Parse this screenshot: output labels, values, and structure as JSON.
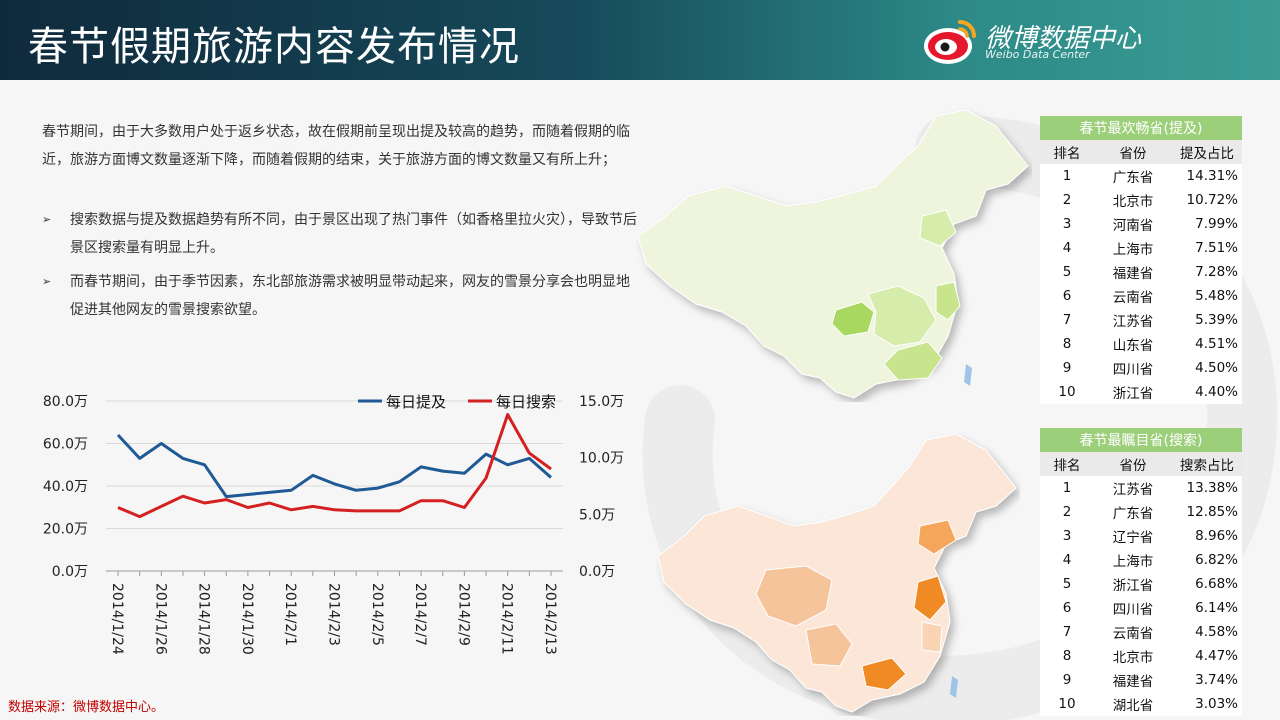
{
  "header": {
    "title": "春节假期旅游内容发布情况",
    "brand_cn": "微博数据中心",
    "brand_en": "Weibo Data Center",
    "gradient_start": "#0f2a3c",
    "gradient_end": "#3a9c95"
  },
  "intro": "春节期间，由于大多数用户处于返乡状态，故在假期前呈现出提及较高的趋势，而随着假期的临近，旅游方面博文数量逐渐下降，而随着假期的结束，关于旅游方面的博文数量又有所上升；",
  "bullets": [
    {
      "mark": "➢",
      "text": "搜索数据与提及数据趋势有所不同，由于景区出现了热门事件（如香格里拉火灾），导致节后景区搜索量有明显上升。"
    },
    {
      "mark": "➢",
      "text": "而春节期间，由于季节因素，东北部旅游需求被明显带动起来，网友的雪景分享会也明显地促进其他网友的雪景搜索欲望。"
    }
  ],
  "table_mention": {
    "caption": "春节最欢畅省(提及)",
    "headers": [
      "排名",
      "省份",
      "提及占比"
    ],
    "rows": [
      [
        "1",
        "广东省",
        "14.31%"
      ],
      [
        "2",
        "北京市",
        "10.72%"
      ],
      [
        "3",
        "河南省",
        "7.99%"
      ],
      [
        "4",
        "上海市",
        "7.51%"
      ],
      [
        "5",
        "福建省",
        "7.28%"
      ],
      [
        "6",
        "云南省",
        "5.48%"
      ],
      [
        "7",
        "江苏省",
        "5.39%"
      ],
      [
        "8",
        "山东省",
        "4.51%"
      ],
      [
        "9",
        "四川省",
        "4.50%"
      ],
      [
        "10",
        "浙江省",
        "4.40%"
      ]
    ]
  },
  "table_search": {
    "caption": "春节最瞩目省(搜索)",
    "headers": [
      "排名",
      "省份",
      "搜索占比"
    ],
    "rows": [
      [
        "1",
        "江苏省",
        "13.38%"
      ],
      [
        "2",
        "广东省",
        "12.85%"
      ],
      [
        "3",
        "辽宁省",
        "8.96%"
      ],
      [
        "4",
        "上海市",
        "6.82%"
      ],
      [
        "5",
        "浙江省",
        "6.68%"
      ],
      [
        "6",
        "四川省",
        "6.14%"
      ],
      [
        "7",
        "云南省",
        "4.58%"
      ],
      [
        "8",
        "北京市",
        "4.47%"
      ],
      [
        "9",
        "福建省",
        "3.74%"
      ],
      [
        "10",
        "湖北省",
        "3.03%"
      ]
    ]
  },
  "map_colors": {
    "green_base": "#eef5dc",
    "green_mid": "#d6ecaa",
    "green_high": "#a8d860",
    "orange_base": "#fbe6d8",
    "orange_mid": "#f6c49a",
    "orange_high": "#f08a24"
  },
  "chart_data": {
    "type": "line",
    "x": [
      "2014/1/24",
      "2014/1/25",
      "2014/1/26",
      "2014/1/27",
      "2014/1/28",
      "2014/1/29",
      "2014/1/30",
      "2014/1/31",
      "2014/2/1",
      "2014/2/2",
      "2014/2/3",
      "2014/2/4",
      "2014/2/5",
      "2014/2/6",
      "2014/2/7",
      "2014/2/8",
      "2014/2/9",
      "2014/2/10",
      "2014/2/11",
      "2014/2/12",
      "2014/2/13"
    ],
    "x_tick_labels": [
      "2014/1/24",
      "2014/1/26",
      "2014/1/28",
      "2014/1/30",
      "2014/2/1",
      "2014/2/3",
      "2014/2/5",
      "2014/2/7",
      "2014/2/9",
      "2014/2/11",
      "2014/2/13"
    ],
    "series": [
      {
        "name": "每日提及",
        "axis": "left",
        "color": "#1f5a96",
        "values": [
          64,
          53,
          60,
          53,
          50,
          35,
          36,
          37,
          38,
          45,
          41,
          38,
          39,
          42,
          49,
          47,
          46,
          55,
          50,
          53,
          44
        ]
      },
      {
        "name": "每日搜索",
        "axis": "right",
        "color": "#d42020",
        "values": [
          5.6,
          4.8,
          5.7,
          6.6,
          6.0,
          6.3,
          5.6,
          6.0,
          5.4,
          5.7,
          5.4,
          5.3,
          5.3,
          5.3,
          6.2,
          6.2,
          5.6,
          8.2,
          13.8,
          10.4,
          9.0
        ]
      }
    ],
    "y_left": {
      "ylim": [
        0,
        80
      ],
      "ticks": [
        "0.0万",
        "20.0万",
        "40.0万",
        "60.0万",
        "80.0万"
      ]
    },
    "y_right": {
      "ylim": [
        0,
        15
      ],
      "ticks": [
        "0.0万",
        "5.0万",
        "10.0万",
        "15.0万"
      ]
    },
    "grid": true,
    "legend_position": "top-right"
  },
  "source": "数据来源：微博数据中心。"
}
